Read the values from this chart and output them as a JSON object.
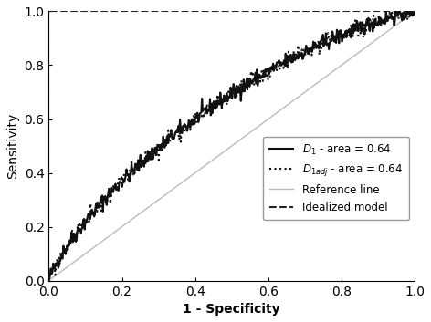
{
  "title": "",
  "xlabel": "1 - Specificity",
  "ylabel": "Sensitivity",
  "xlim": [
    0.0,
    1.0
  ],
  "ylim": [
    0.0,
    1.0
  ],
  "xticks": [
    0.0,
    0.2,
    0.4,
    0.6,
    0.8,
    1.0
  ],
  "yticks": [
    0.0,
    0.2,
    0.4,
    0.6,
    0.8,
    1.0
  ],
  "reference_line": {
    "x": [
      0,
      1
    ],
    "y": [
      0,
      1
    ],
    "color": "#bbbbbb",
    "lw": 1.0,
    "ls": "-",
    "label": "Reference line"
  },
  "idealized_model": {
    "x": [
      0,
      0,
      1
    ],
    "y": [
      0,
      1,
      1
    ],
    "color": "#222222",
    "lw": 1.5,
    "ls": "--",
    "label": "Idealized model"
  },
  "roc_solid_label": "$D_1$ - area = 0.64",
  "roc_dotted_label": "$D_{1adj}$ - area = 0.64",
  "roc_color": "#111111",
  "roc_lw": 1.5,
  "background_color": "#ffffff",
  "figsize": [
    4.72,
    3.53
  ],
  "dpi": 100
}
